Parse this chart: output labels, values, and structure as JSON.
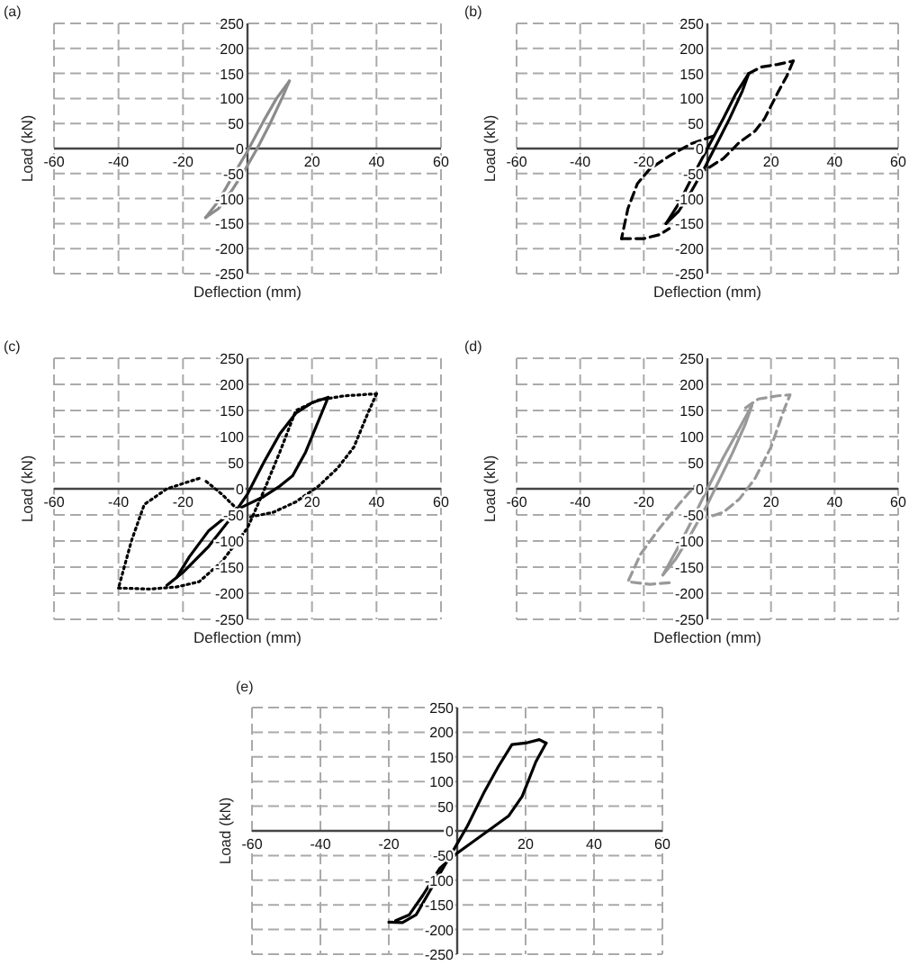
{
  "chart_data": [
    {
      "type": "line",
      "title": "(a)",
      "xlabel": "Deflection (mm)",
      "ylabel": "Load (kN)",
      "xlim": [
        -60,
        60
      ],
      "ylim": [
        -250,
        250
      ],
      "xticks": [
        -60,
        -40,
        -20,
        20,
        40,
        60
      ],
      "yticks": [
        -250,
        -200,
        -150,
        -100,
        -50,
        0,
        50,
        100,
        150,
        200,
        250
      ],
      "grid": true,
      "series": [
        {
          "color": "#8c8c8c",
          "line_style": "solid",
          "x": [
            -13,
            -9,
            -5,
            0,
            5,
            9,
            13
          ],
          "values": [
            -138,
            -105,
            -60,
            -5,
            55,
            100,
            135
          ]
        },
        {
          "color": "#8c8c8c",
          "line_style": "solid",
          "x": [
            13,
            11,
            7,
            3,
            -1,
            -5,
            -9,
            -13
          ],
          "values": [
            135,
            105,
            50,
            0,
            -45,
            -85,
            -120,
            -138
          ]
        }
      ]
    },
    {
      "type": "line",
      "title": "(b)",
      "xlabel": "Deflection (mm)",
      "ylabel": "Load (kN)",
      "xlim": [
        -60,
        60
      ],
      "ylim": [
        -250,
        250
      ],
      "xticks": [
        -60,
        -40,
        -20,
        20,
        40,
        60
      ],
      "yticks": [
        -250,
        -200,
        -150,
        -100,
        -50,
        0,
        50,
        100,
        150,
        200,
        250
      ],
      "grid": true,
      "series": [
        {
          "color": "#000000",
          "line_style": "solid",
          "x": [
            -13,
            -9,
            -5,
            0,
            5,
            9,
            13
          ],
          "values": [
            -150,
            -110,
            -60,
            0,
            60,
            110,
            150
          ]
        },
        {
          "color": "#000000",
          "line_style": "solid",
          "x": [
            13,
            11,
            7,
            3,
            -1,
            -5,
            -9,
            -13
          ],
          "values": [
            150,
            115,
            60,
            10,
            -40,
            -85,
            -125,
            -150
          ]
        },
        {
          "color": "#000000",
          "line_style": "dashed",
          "x": [
            13,
            17,
            22,
            27
          ],
          "values": [
            150,
            163,
            168,
            175
          ]
        },
        {
          "color": "#000000",
          "line_style": "dashed",
          "x": [
            27,
            25,
            22,
            18,
            15,
            10,
            5,
            0,
            -6
          ],
          "values": [
            175,
            145,
            110,
            60,
            35,
            12,
            -20,
            -40,
            -60
          ]
        },
        {
          "color": "#000000",
          "line_style": "dashed",
          "x": [
            2,
            -5,
            -12,
            -18,
            -22,
            -25,
            -27
          ],
          "values": [
            25,
            10,
            -15,
            -40,
            -70,
            -120,
            -180
          ]
        },
        {
          "color": "#000000",
          "line_style": "dashed",
          "x": [
            -27,
            -20,
            -15,
            -12
          ],
          "values": [
            -180,
            -180,
            -172,
            -160
          ]
        }
      ]
    },
    {
      "type": "line",
      "title": "(c)",
      "xlabel": "Deflection (mm)",
      "ylabel": "Load (kN)",
      "xlim": [
        -60,
        60
      ],
      "ylim": [
        -250,
        250
      ],
      "xticks": [
        -60,
        -40,
        -20,
        20,
        40,
        60
      ],
      "yticks": [
        -250,
        -200,
        -150,
        -100,
        -50,
        0,
        50,
        100,
        150,
        200,
        250
      ],
      "grid": true,
      "series": [
        {
          "color": "#000000",
          "line_style": "solid",
          "x": [
            -25,
            -20,
            -12,
            -5,
            0,
            5,
            10,
            15,
            20,
            25
          ],
          "values": [
            -185,
            -160,
            -110,
            -55,
            -10,
            50,
            105,
            145,
            165,
            175
          ]
        },
        {
          "color": "#000000",
          "line_style": "solid",
          "x": [
            25,
            22,
            18,
            14,
            10,
            5,
            0,
            -5,
            -12,
            -18,
            -22
          ],
          "values": [
            175,
            130,
            70,
            25,
            5,
            -15,
            -30,
            -45,
            -80,
            -130,
            -170
          ]
        },
        {
          "color": "#000000",
          "line_style": "dotted",
          "x": [
            -15,
            -25,
            -32,
            -36,
            -40
          ],
          "values": [
            20,
            0,
            -30,
            -100,
            -190
          ]
        },
        {
          "color": "#000000",
          "line_style": "dotted",
          "x": [
            -40,
            -30,
            -22,
            -15,
            -8,
            0,
            5,
            10,
            15,
            22,
            30,
            40
          ],
          "values": [
            -190,
            -192,
            -188,
            -178,
            -140,
            -75,
            -5,
            70,
            150,
            170,
            178,
            182
          ]
        },
        {
          "color": "#000000",
          "line_style": "dotted",
          "x": [
            40,
            37,
            33,
            28,
            22,
            15,
            8,
            0
          ],
          "values": [
            182,
            140,
            80,
            40,
            5,
            -25,
            -45,
            -55
          ]
        },
        {
          "color": "#000000",
          "line_style": "dotted",
          "x": [
            -3,
            -8,
            -13
          ],
          "values": [
            -40,
            -10,
            15
          ]
        }
      ]
    },
    {
      "type": "line",
      "title": "(d)",
      "xlabel": "Deflection (mm)",
      "ylabel": "Load (kN)",
      "xlim": [
        -60,
        60
      ],
      "ylim": [
        -250,
        250
      ],
      "xticks": [
        -60,
        -40,
        -20,
        20,
        40,
        60
      ],
      "yticks": [
        -250,
        -200,
        -150,
        -100,
        -50,
        0,
        50,
        100,
        150,
        200,
        250
      ],
      "grid": true,
      "series": [
        {
          "color": "#999999",
          "line_style": "solid",
          "x": [
            -14,
            -9,
            -4,
            0,
            5,
            10,
            14
          ],
          "values": [
            -165,
            -110,
            -50,
            0,
            60,
            115,
            160
          ]
        },
        {
          "color": "#999999",
          "line_style": "solid",
          "x": [
            14,
            12,
            8,
            4,
            0,
            -5,
            -10,
            -14
          ],
          "values": [
            160,
            125,
            70,
            20,
            -30,
            -85,
            -135,
            -165
          ]
        },
        {
          "color": "#999999",
          "line_style": "dashed",
          "x": [
            -12,
            -18,
            -25,
            -21,
            -15,
            -9,
            -4,
            null,
            12,
            16,
            22,
            26,
            24,
            20,
            15,
            10,
            5,
            0,
            -4
          ],
          "values": [
            -180,
            -183,
            -178,
            -125,
            -75,
            -30,
            5,
            null,
            155,
            172,
            178,
            180,
            150,
            80,
            20,
            -20,
            -45,
            -55,
            -50
          ]
        }
      ]
    },
    {
      "type": "line",
      "title": "(e)",
      "ylabel": "Load (kN)",
      "xlim": [
        -60,
        60
      ],
      "ylim": [
        -250,
        250
      ],
      "xticks": [
        -60,
        -40,
        -20,
        20,
        40,
        60
      ],
      "yticks": [
        -250,
        -200,
        -150,
        -100,
        -50,
        0,
        50,
        100,
        150,
        200,
        250
      ],
      "grid": true,
      "series": [
        {
          "color": "#000000",
          "line_style": "solid",
          "x": [
            -20,
            -16,
            -12,
            -7,
            -2,
            3,
            8,
            12,
            16,
            20,
            24,
            26
          ],
          "values": [
            -185,
            -186,
            -170,
            -110,
            -50,
            10,
            80,
            130,
            175,
            178,
            185,
            178
          ]
        },
        {
          "color": "#000000",
          "line_style": "solid",
          "x": [
            26,
            23,
            19,
            15,
            10,
            5,
            0,
            -5,
            -10,
            -14,
            -18
          ],
          "values": [
            178,
            140,
            70,
            30,
            5,
            -20,
            -45,
            -75,
            -130,
            -170,
            -182
          ]
        }
      ]
    }
  ]
}
